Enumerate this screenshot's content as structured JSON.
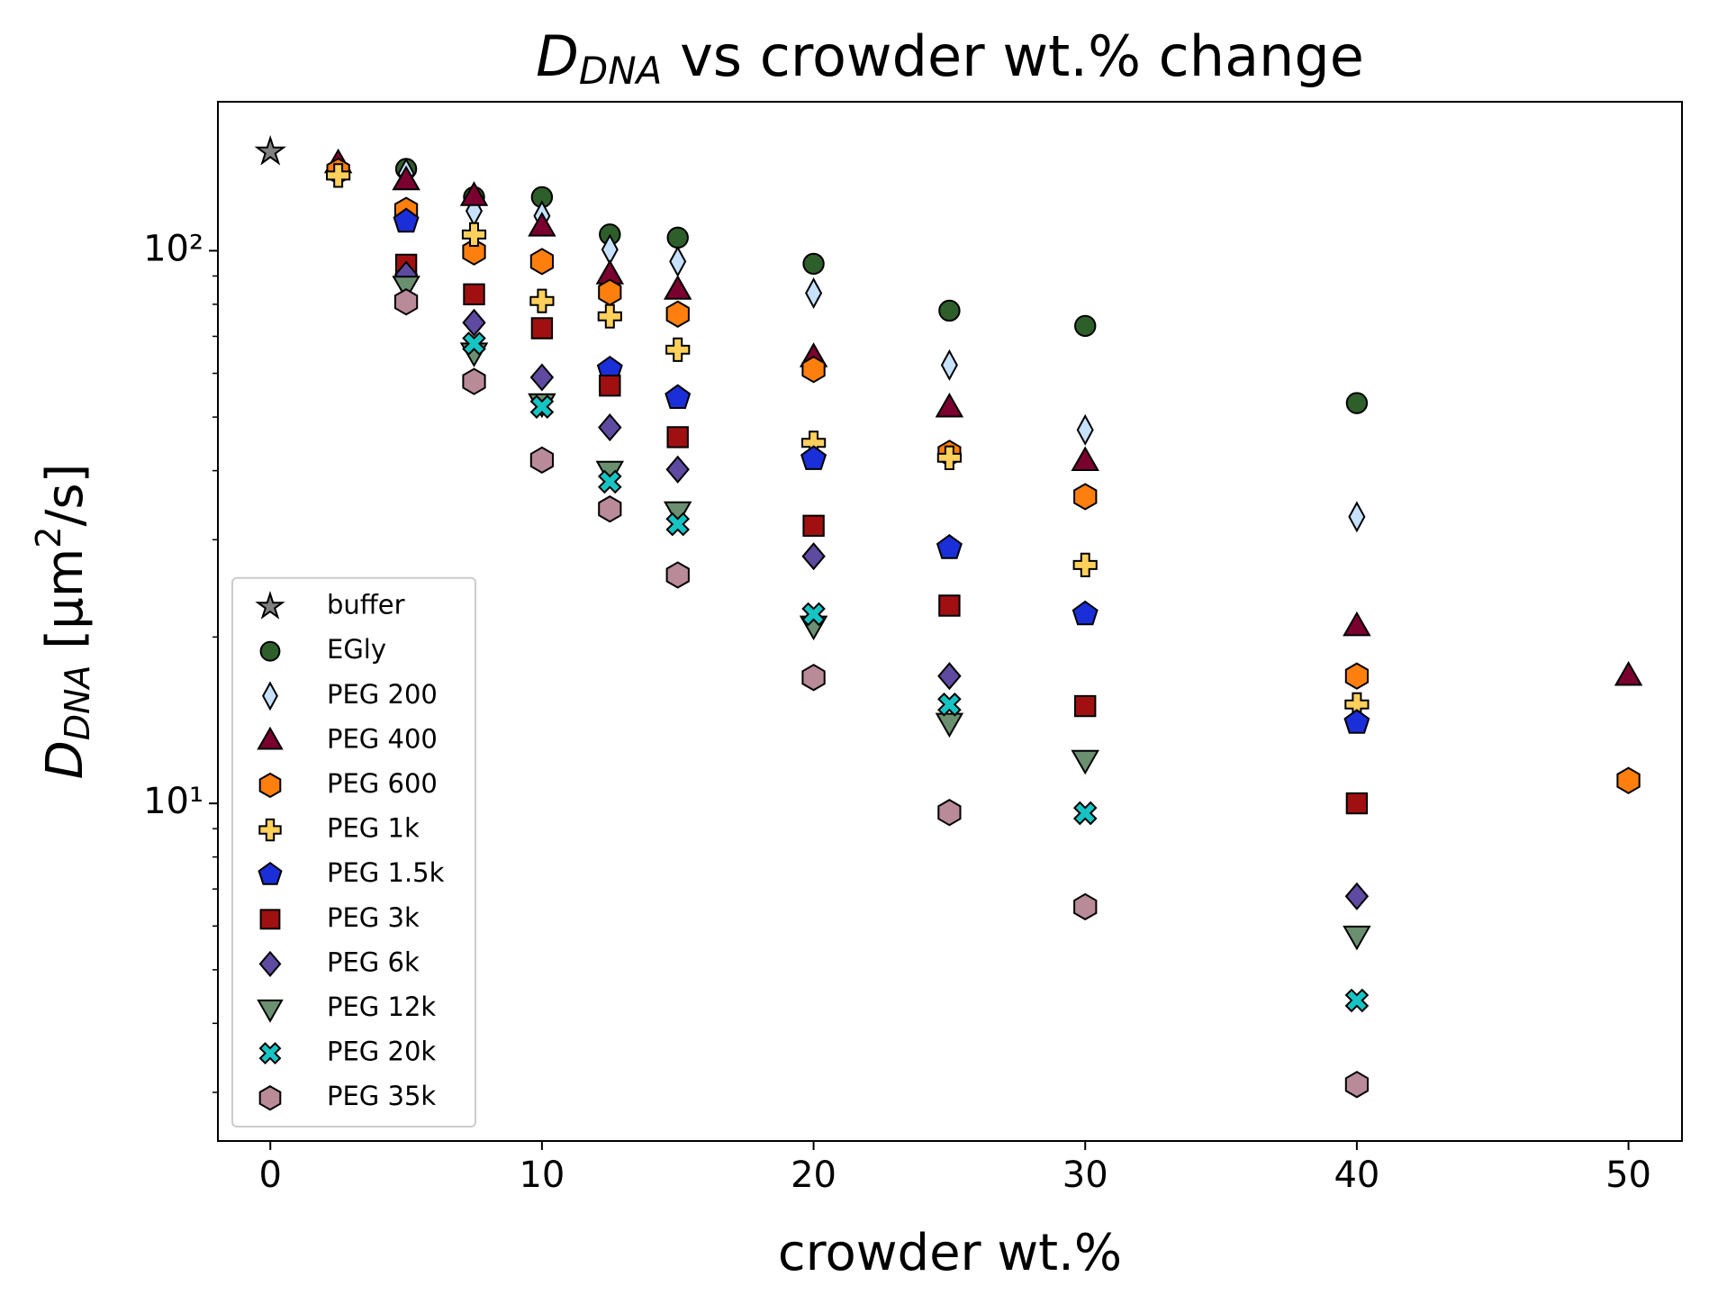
{
  "chart_data": {
    "type": "scatter",
    "title": {
      "main": "D",
      "sub": "DNA",
      "rest": " vs crowder wt.% change"
    },
    "xlabel": "crowder wt.%",
    "ylabel": {
      "main": "D",
      "sub": "DNA",
      "unit": " [μm",
      "sup": "2",
      "end": "/s]"
    },
    "xlim": [
      -1.93,
      51.97
    ],
    "ylim": [
      2.45,
      186
    ],
    "log_y": true,
    "xticks": [
      0,
      10,
      20,
      30,
      40,
      50
    ],
    "yticks": [
      {
        "value": 10,
        "label": "10¹"
      },
      {
        "value": 100,
        "label": "10²"
      }
    ],
    "yminorticks": [
      3,
      4,
      5,
      6,
      7,
      8,
      9,
      20,
      30,
      40,
      50,
      60,
      70,
      80,
      90
    ],
    "legend": "lower left",
    "series": [
      {
        "name": "buffer",
        "color": "#808080",
        "marker": "star",
        "x": [
          0
        ],
        "values": [
          151
        ]
      },
      {
        "name": "EGly",
        "color": "#2e5e2a",
        "marker": "circle",
        "x": [
          5,
          7.5,
          10,
          12.5,
          15,
          20,
          25,
          30,
          40
        ],
        "values": [
          140.6,
          125,
          125,
          107,
          105.6,
          94.7,
          77.9,
          73.1,
          53.0
        ]
      },
      {
        "name": "PEG 200",
        "color": "#c6e2ff",
        "marker": "thin_diamond",
        "x": [
          5,
          7.5,
          10,
          12.5,
          15,
          20,
          25,
          30,
          40
        ],
        "values": [
          138,
          118,
          115.6,
          100.5,
          95.6,
          83.8,
          62.1,
          47.4,
          33.0
        ]
      },
      {
        "name": "PEG 400",
        "color": "#7a0030",
        "marker": "triangle_up",
        "x": [
          2.5,
          5,
          7.5,
          10,
          12.5,
          15,
          20,
          25,
          30,
          40,
          50
        ],
        "values": [
          143.8,
          134,
          125.5,
          110.5,
          90.5,
          84.9,
          64.1,
          52,
          41.6,
          20.9,
          17.0
        ]
      },
      {
        "name": "PEG 600",
        "color": "#ff7f0e",
        "marker": "hexagon",
        "x": [
          2.5,
          5,
          7.5,
          10,
          12.5,
          15,
          20,
          25,
          30,
          40,
          50
        ],
        "values": [
          139.3,
          118.3,
          99.5,
          95.6,
          84.1,
          76.8,
          61,
          43,
          35.9,
          17.0,
          11.0
        ]
      },
      {
        "name": "PEG 1k",
        "color": "#ffd05c",
        "marker": "plus",
        "x": [
          2.5,
          7.5,
          10,
          12.5,
          15,
          20,
          25,
          30,
          40
        ],
        "values": [
          136.8,
          107,
          81.1,
          76.1,
          66.2,
          44.9,
          42.2,
          27.0,
          15.1
        ]
      },
      {
        "name": "PEG 1.5k",
        "color": "#1a2fd8",
        "marker": "pentagon",
        "x": [
          5,
          12.5,
          15,
          20,
          25,
          30,
          40
        ],
        "values": [
          113,
          61,
          54.2,
          42,
          29.0,
          22.0,
          14.0
        ]
      },
      {
        "name": "PEG 3k",
        "color": "#a01010",
        "marker": "square",
        "x": [
          5,
          7.5,
          10,
          12.5,
          15,
          20,
          25,
          30,
          40
        ],
        "values": [
          94.3,
          83.4,
          72.4,
          57.0,
          46.0,
          31.8,
          22.8,
          15.0,
          10.0
        ]
      },
      {
        "name": "PEG 6k",
        "color": "#5e4aa0",
        "marker": "diamond",
        "x": [
          5,
          7.5,
          10,
          12.5,
          15,
          20,
          25,
          40
        ],
        "values": [
          90.5,
          74.1,
          59.0,
          47.9,
          40.2,
          28.0,
          17.0,
          6.79
        ]
      },
      {
        "name": "PEG 12k",
        "color": "#6b9070",
        "marker": "triangle_down",
        "x": [
          5,
          7.5,
          10,
          12.5,
          15,
          20,
          25,
          30,
          40
        ],
        "values": [
          86.5,
          65.5,
          53,
          40,
          33.8,
          21.0,
          14.0,
          12.0,
          5.77
        ]
      },
      {
        "name": "PEG 20k",
        "color": "#17c4c4",
        "marker": "x",
        "x": [
          7.5,
          10,
          12.5,
          15,
          20,
          25,
          30,
          40
        ],
        "values": [
          67.9,
          52.2,
          38.2,
          32.0,
          22.0,
          15.1,
          9.6,
          4.4
        ]
      },
      {
        "name": "PEG 35k",
        "color": "#b98a98",
        "marker": "hexagon",
        "x": [
          5,
          7.5,
          10,
          12.5,
          15,
          20,
          25,
          30,
          40
        ],
        "values": [
          80.8,
          58.0,
          41.8,
          34.1,
          25.9,
          16.9,
          9.63,
          6.5,
          3.1
        ]
      }
    ]
  }
}
